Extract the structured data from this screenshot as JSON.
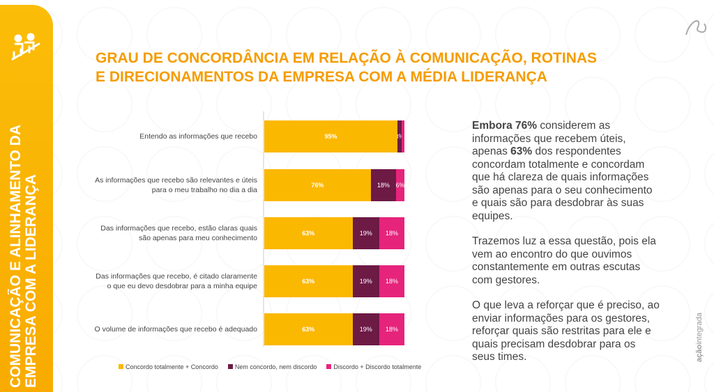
{
  "sidebar": {
    "title_line1": "COMUNICAÇÃO E ALINHAMENTO DA",
    "title_line2": "EMPRESA COM A LIDERANÇA"
  },
  "chart_data": {
    "type": "bar",
    "stacked": true,
    "orientation": "horizontal",
    "title": "GRAU DE CONCORDÂNCIA EM RELAÇÃO À COMUNICAÇÃO, ROTINAS E DIRECIONAMENTOS DA EMPRESA COM A MÉDIA LIDERANÇA",
    "title_line1": "GRAU DE CONCORDÂNCIA EM RELAÇÃO À COMUNICAÇÃO, ROTINAS",
    "title_line2": "E DIRECIONAMENTOS DA EMPRESA COM A MÉDIA LIDERANÇA",
    "categories": [
      "Entendo as informações que recebo",
      "As informações que recebo são relevantes e úteis para o meu trabalho no dia a dia",
      "Das informações que recebo, estão claras quais são apenas para meu conhecimento",
      "Das informações que recebo, é citado claramente o que eu devo desdobrar para a minha equipe",
      "O volume de informações que recebo é adequado"
    ],
    "series": [
      {
        "name": "Concordo totalmente + Concordo",
        "color": "#fbb800",
        "values": [
          95,
          76,
          63,
          63,
          63
        ],
        "labels": [
          "95%",
          "76%",
          "63%",
          "63%",
          "63%"
        ]
      },
      {
        "name": "Nem concordo, nem discordo",
        "color": "#6d1a45",
        "values": [
          3,
          18,
          19,
          19,
          19
        ],
        "labels": [
          "3%",
          "18%",
          "19%",
          "19%",
          "19%"
        ]
      },
      {
        "name": "Discordo + Discordo totalmente",
        "color": "#e6247b",
        "values": [
          2,
          6,
          18,
          18,
          18
        ],
        "labels": [
          "",
          "6%",
          "18%",
          "18%",
          "18%"
        ]
      }
    ],
    "xlim": [
      0,
      100
    ],
    "legend": "bottom"
  },
  "commentary": {
    "p1_bold1": "Embora 76%",
    "p1_t1": " considerem as informações que recebem úteis, apenas ",
    "p1_bold2": "63%",
    "p1_t2": " dos respondentes concordam totalmente e concordam que há clareza de quais informações são apenas para o seu conhecimento e quais são para desdobrar às suas equipes.",
    "p2": "Trazemos luz a essa questão, pois ela vem ao encontro do que ouvimos constantemente em outras escutas com gestores.",
    "p3": "O que leva a reforçar que é preciso, ao enviar informações para os gestores, reforçar quais são restritas para ele e quais precisam desdobrar para os seus times."
  },
  "brand": {
    "bold": "ação",
    "light": "integrada"
  }
}
